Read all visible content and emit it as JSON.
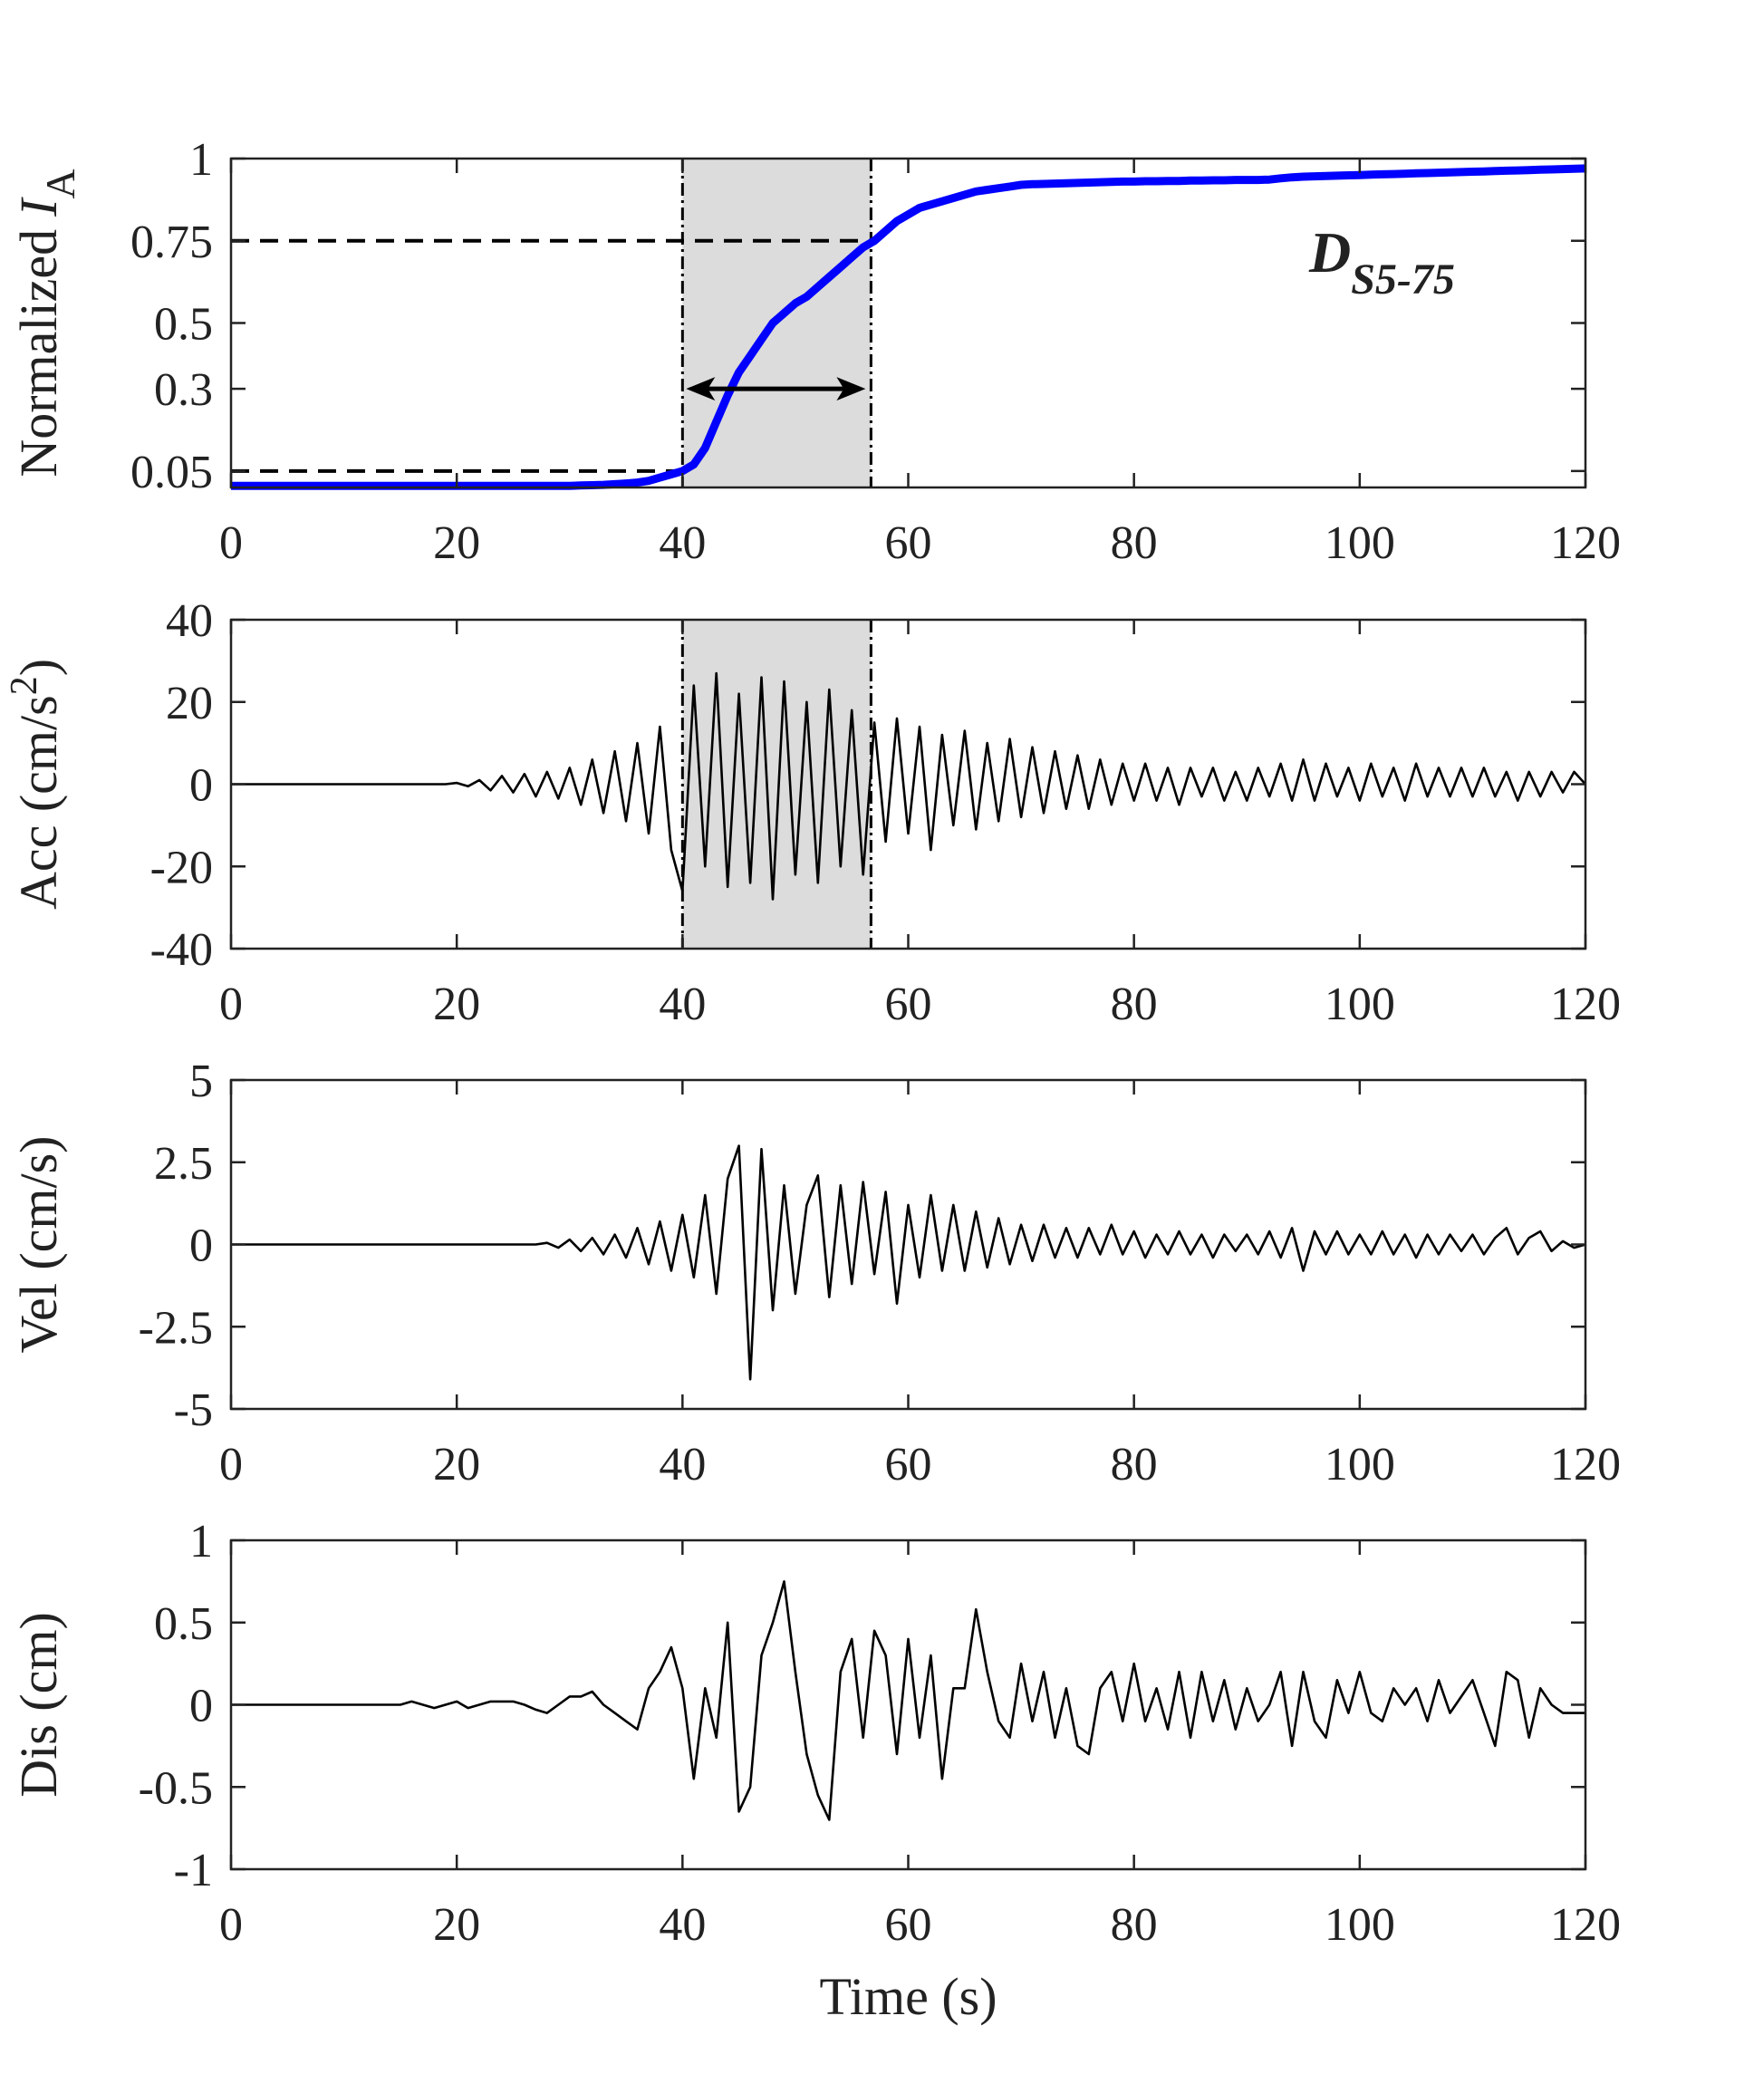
{
  "chart_data": [
    {
      "type": "line",
      "ylabel": "Normalized",
      "ylabel_italic": "I",
      "ylabel_sub": "A",
      "annotation": "D",
      "annotation_sub": "S5-75",
      "xlim": [
        0,
        120
      ],
      "xticks": [
        0,
        20,
        40,
        60,
        80,
        100,
        120
      ],
      "ylim": [
        0,
        1
      ],
      "yticks": [
        0.05,
        0.3,
        0.5,
        0.75,
        1
      ],
      "shade": [
        40,
        56.7
      ],
      "levels": [
        0.05,
        0.75
      ],
      "arrow_y": 0.3,
      "color": "#0000ff",
      "x": [
        0,
        1,
        2,
        3,
        4,
        5,
        6,
        7,
        8,
        9,
        10,
        11,
        12,
        13,
        14,
        15,
        16,
        17,
        18,
        19,
        20,
        21,
        22,
        23,
        24,
        25,
        26,
        27,
        28,
        29,
        30,
        31,
        32,
        33,
        34,
        35,
        36,
        37,
        38,
        39,
        40,
        41,
        42,
        43,
        44,
        45,
        46,
        47,
        48,
        49,
        50,
        51,
        52,
        53,
        54,
        55,
        56,
        57,
        58,
        59,
        60,
        61,
        62,
        63,
        64,
        65,
        66,
        67,
        68,
        69,
        70,
        71,
        72,
        73,
        74,
        75,
        76,
        77,
        78,
        79,
        80,
        81,
        82,
        83,
        84,
        85,
        86,
        87,
        88,
        89,
        90,
        91,
        92,
        93,
        94,
        95,
        96,
        97,
        98,
        99,
        100,
        101,
        102,
        103,
        104,
        105,
        106,
        107,
        108,
        109,
        110,
        111,
        112,
        113,
        114,
        115,
        116,
        117,
        118,
        119,
        120
      ],
      "values": [
        0.005,
        0.005,
        0.005,
        0.005,
        0.005,
        0.005,
        0.005,
        0.005,
        0.005,
        0.005,
        0.005,
        0.005,
        0.005,
        0.005,
        0.005,
        0.005,
        0.005,
        0.005,
        0.005,
        0.005,
        0.005,
        0.005,
        0.005,
        0.005,
        0.005,
        0.005,
        0.005,
        0.005,
        0.005,
        0.005,
        0.005,
        0.006,
        0.007,
        0.008,
        0.01,
        0.012,
        0.015,
        0.02,
        0.03,
        0.04,
        0.05,
        0.07,
        0.12,
        0.2,
        0.28,
        0.35,
        0.4,
        0.45,
        0.5,
        0.53,
        0.56,
        0.58,
        0.61,
        0.64,
        0.67,
        0.7,
        0.73,
        0.75,
        0.78,
        0.81,
        0.83,
        0.85,
        0.86,
        0.87,
        0.88,
        0.89,
        0.9,
        0.905,
        0.91,
        0.915,
        0.92,
        0.922,
        0.923,
        0.924,
        0.925,
        0.926,
        0.927,
        0.928,
        0.929,
        0.93,
        0.93,
        0.931,
        0.931,
        0.932,
        0.932,
        0.933,
        0.933,
        0.934,
        0.934,
        0.935,
        0.935,
        0.935,
        0.936,
        0.94,
        0.943,
        0.945,
        0.946,
        0.947,
        0.948,
        0.949,
        0.95,
        0.951,
        0.952,
        0.953,
        0.954,
        0.955,
        0.956,
        0.957,
        0.958,
        0.959,
        0.96,
        0.961,
        0.962,
        0.963,
        0.964,
        0.965,
        0.966,
        0.967,
        0.968,
        0.969,
        0.97
      ]
    },
    {
      "type": "line",
      "ylabel": "Acc (cm/s",
      "ylabel_sup": "2",
      "ylabel_end": ")",
      "xlim": [
        0,
        120
      ],
      "xticks": [
        0,
        20,
        40,
        60,
        80,
        100,
        120
      ],
      "ylim": [
        -40,
        40
      ],
      "yticks": [
        -40,
        -20,
        0,
        20,
        40
      ],
      "shade": [
        40,
        56.7
      ],
      "color": "#000000",
      "x": [
        0,
        1,
        2,
        3,
        4,
        5,
        6,
        7,
        8,
        9,
        10,
        11,
        12,
        13,
        14,
        15,
        16,
        17,
        18,
        19,
        20,
        21,
        22,
        23,
        24,
        25,
        26,
        27,
        28,
        29,
        30,
        31,
        32,
        33,
        34,
        35,
        36,
        37,
        38,
        39,
        40,
        41,
        42,
        43,
        44,
        45,
        46,
        47,
        48,
        49,
        50,
        51,
        52,
        53,
        54,
        55,
        56,
        57,
        58,
        59,
        60,
        61,
        62,
        63,
        64,
        65,
        66,
        67,
        68,
        69,
        70,
        71,
        72,
        73,
        74,
        75,
        76,
        77,
        78,
        79,
        80,
        81,
        82,
        83,
        84,
        85,
        86,
        87,
        88,
        89,
        90,
        91,
        92,
        93,
        94,
        95,
        96,
        97,
        98,
        99,
        100,
        101,
        102,
        103,
        104,
        105,
        106,
        107,
        108,
        109,
        110,
        111,
        112,
        113,
        114,
        115,
        116,
        117,
        118,
        119,
        120
      ],
      "values": [
        0,
        0,
        0,
        0,
        0,
        0,
        0,
        0,
        0,
        0,
        0,
        0,
        0,
        0,
        0,
        0,
        0,
        0,
        0,
        0,
        0.3,
        -0.5,
        1,
        -1.5,
        2,
        -2,
        2.5,
        -3,
        3,
        -3.5,
        4,
        -5,
        6,
        -7,
        8,
        -9,
        10,
        -12,
        14,
        -16,
        -26,
        24,
        -20,
        27,
        -25,
        22,
        -24,
        26,
        -28,
        25,
        -22,
        20,
        -24,
        23,
        -20,
        18,
        -22,
        15,
        -14,
        16,
        -12,
        14,
        -16,
        12,
        -10,
        13,
        -11,
        10,
        -9,
        11,
        -8,
        9,
        -7,
        8,
        -6,
        7,
        -6,
        6,
        -5,
        5,
        -4,
        5,
        -4,
        4,
        -5,
        4,
        -3,
        4,
        -4,
        3,
        -4,
        4,
        -3,
        5,
        -4,
        6,
        -4,
        5,
        -3,
        4,
        -4,
        5,
        -3,
        4,
        -4,
        5,
        -3,
        4,
        -3,
        4,
        -3,
        4,
        -3,
        3,
        -4,
        3,
        -3,
        3,
        -2,
        3,
        0
      ]
    },
    {
      "type": "line",
      "ylabel": "Vel (cm/s)",
      "xlim": [
        0,
        120
      ],
      "xticks": [
        0,
        20,
        40,
        60,
        80,
        100,
        120
      ],
      "ylim": [
        -5,
        5
      ],
      "yticks": [
        -5,
        -2.5,
        0,
        2.5,
        5
      ],
      "color": "#000000",
      "x": [
        0,
        1,
        2,
        3,
        4,
        5,
        6,
        7,
        8,
        9,
        10,
        11,
        12,
        13,
        14,
        15,
        16,
        17,
        18,
        19,
        20,
        21,
        22,
        23,
        24,
        25,
        26,
        27,
        28,
        29,
        30,
        31,
        32,
        33,
        34,
        35,
        36,
        37,
        38,
        39,
        40,
        41,
        42,
        43,
        44,
        45,
        46,
        47,
        48,
        49,
        50,
        51,
        52,
        53,
        54,
        55,
        56,
        57,
        58,
        59,
        60,
        61,
        62,
        63,
        64,
        65,
        66,
        67,
        68,
        69,
        70,
        71,
        72,
        73,
        74,
        75,
        76,
        77,
        78,
        79,
        80,
        81,
        82,
        83,
        84,
        85,
        86,
        87,
        88,
        89,
        90,
        91,
        92,
        93,
        94,
        95,
        96,
        97,
        98,
        99,
        100,
        101,
        102,
        103,
        104,
        105,
        106,
        107,
        108,
        109,
        110,
        111,
        112,
        113,
        114,
        115,
        116,
        117,
        118,
        119,
        120
      ],
      "values": [
        0,
        0,
        0,
        0,
        0,
        0,
        0,
        0,
        0,
        0,
        0,
        0,
        0,
        0,
        0,
        0,
        0,
        0,
        0,
        0,
        0,
        0,
        0,
        0,
        0,
        0,
        0,
        0,
        0.05,
        -0.1,
        0.15,
        -0.2,
        0.2,
        -0.3,
        0.3,
        -0.4,
        0.5,
        -0.6,
        0.7,
        -0.8,
        0.9,
        -1,
        1.5,
        -1.5,
        2,
        3,
        -4.1,
        2.9,
        -2,
        1.8,
        -1.5,
        1.2,
        2.1,
        -1.6,
        1.8,
        -1.2,
        1.9,
        -0.9,
        1.6,
        -1.8,
        1.2,
        -1,
        1.5,
        -0.8,
        1.2,
        -0.8,
        1,
        -0.7,
        0.8,
        -0.6,
        0.6,
        -0.5,
        0.6,
        -0.4,
        0.5,
        -0.4,
        0.5,
        -0.3,
        0.6,
        -0.3,
        0.4,
        -0.4,
        0.3,
        -0.3,
        0.4,
        -0.3,
        0.3,
        -0.4,
        0.3,
        -0.2,
        0.3,
        -0.3,
        0.4,
        -0.4,
        0.5,
        -0.8,
        0.4,
        -0.3,
        0.4,
        -0.3,
        0.3,
        -0.3,
        0.4,
        -0.3,
        0.3,
        -0.4,
        0.3,
        -0.3,
        0.3,
        -0.2,
        0.3,
        -0.3,
        0.2,
        0.5,
        -0.3,
        0.2,
        0.4,
        -0.2,
        0.1,
        -0.1,
        0
      ]
    },
    {
      "type": "line",
      "ylabel": "Dis (cm)",
      "xlabel": "Time (s)",
      "xlim": [
        0,
        120
      ],
      "xticks": [
        0,
        20,
        40,
        60,
        80,
        100,
        120
      ],
      "ylim": [
        -1,
        1
      ],
      "yticks": [
        -1,
        -0.5,
        0,
        0.5,
        1
      ],
      "color": "#000000",
      "x": [
        0,
        1,
        2,
        3,
        4,
        5,
        6,
        7,
        8,
        9,
        10,
        11,
        12,
        13,
        14,
        15,
        16,
        17,
        18,
        19,
        20,
        21,
        22,
        23,
        24,
        25,
        26,
        27,
        28,
        29,
        30,
        31,
        32,
        33,
        34,
        35,
        36,
        37,
        38,
        39,
        40,
        41,
        42,
        43,
        44,
        45,
        46,
        47,
        48,
        49,
        50,
        51,
        52,
        53,
        54,
        55,
        56,
        57,
        58,
        59,
        60,
        61,
        62,
        63,
        64,
        65,
        66,
        67,
        68,
        69,
        70,
        71,
        72,
        73,
        74,
        75,
        76,
        77,
        78,
        79,
        80,
        81,
        82,
        83,
        84,
        85,
        86,
        87,
        88,
        89,
        90,
        91,
        92,
        93,
        94,
        95,
        96,
        97,
        98,
        99,
        100,
        101,
        102,
        103,
        104,
        105,
        106,
        107,
        108,
        109,
        110,
        111,
        112,
        113,
        114,
        115,
        116,
        117,
        118,
        119,
        120
      ],
      "values": [
        0,
        0,
        0,
        0,
        0,
        0,
        0,
        0,
        0,
        0,
        0,
        0,
        0,
        0,
        0,
        0,
        0.02,
        0,
        -0.02,
        0,
        0.02,
        -0.02,
        0,
        0.02,
        0.02,
        0.02,
        0,
        -0.03,
        -0.05,
        0,
        0.05,
        0.05,
        0.08,
        0,
        -0.05,
        -0.1,
        -0.15,
        0.1,
        0.2,
        0.35,
        0.1,
        -0.45,
        0.1,
        -0.2,
        0.5,
        -0.65,
        -0.5,
        0.3,
        0.5,
        0.75,
        0.2,
        -0.3,
        -0.55,
        -0.7,
        0.2,
        0.4,
        -0.2,
        0.45,
        0.3,
        -0.3,
        0.4,
        -0.2,
        0.3,
        -0.45,
        0.1,
        0.1,
        0.58,
        0.2,
        -0.1,
        -0.2,
        0.25,
        -0.1,
        0.2,
        -0.2,
        0.1,
        -0.25,
        -0.3,
        0.1,
        0.2,
        -0.1,
        0.25,
        -0.1,
        0.1,
        -0.15,
        0.2,
        -0.2,
        0.2,
        -0.1,
        0.15,
        -0.15,
        0.1,
        -0.1,
        0,
        0.2,
        -0.25,
        0.2,
        -0.1,
        -0.2,
        0.15,
        -0.05,
        0.2,
        -0.05,
        -0.1,
        0.1,
        0,
        0.1,
        -0.1,
        0.15,
        -0.05,
        0.05,
        0.15,
        -0.05,
        -0.25,
        0.2,
        0.15,
        -0.2,
        0.1,
        0,
        -0.05,
        -0.05,
        -0.05
      ]
    }
  ]
}
